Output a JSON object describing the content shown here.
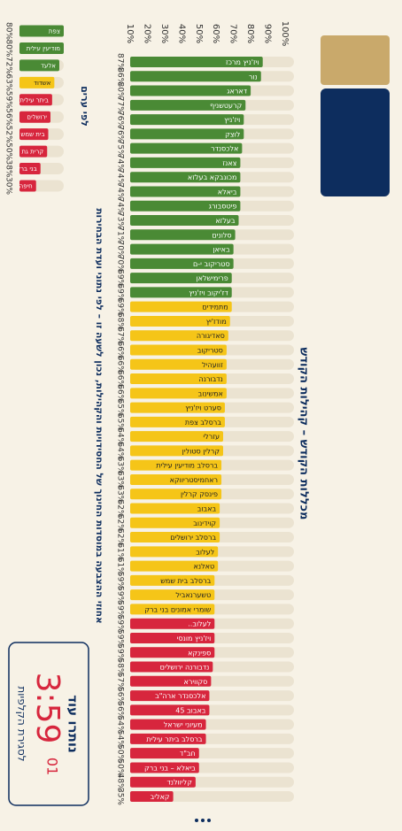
{
  "header": {
    "title": "מכללות הקודש – קהילות הקודש",
    "caption": "אחוזי ההצבעה במוסדות החינוך של החסידויות והקהילות, נכון לשעה זו – לפי נתוני ועדת הבחירות"
  },
  "countdown": {
    "label": "נותרו עוד",
    "time": "3:59",
    "seconds": "01",
    "caption": "לסגירת הקלפיות"
  },
  "chart_data": [
    {
      "type": "bar",
      "categories": [
        "ויז'ניץ מרכז",
        "נור",
        "דאראג",
        "קרעטשניף",
        "ויז'ניץ",
        "לוצק",
        "אלכסנדר",
        "צאנז",
        "מכונבקא בעלזא",
        "ביאלא",
        "פיטסבורג",
        "בעלזא",
        "סלונים",
        "באיאן",
        "סטריקוב י-ם",
        "פרימישלאן",
        "דז'יקוב ויז'ניץ",
        "מתמידים",
        "מודז'יץ",
        "סאדיגורה",
        "סטריקוב",
        "זוועהיל",
        "נדבורנה",
        "אמשינוב",
        "סערט ויז'ניץ",
        "ברסלב צפת",
        "עזרלי",
        "קרלין סטולין",
        "ברסלב מודיעין עילית",
        "ראחמיסטריווקא",
        "פינסק קרלין",
        "באבוב",
        "קוידינוב",
        "ברסלב ירושלים",
        "לעלוב",
        "טאלנא",
        "ברסלב בית שמש",
        "טשערנאביל",
        "שומרי אמונים בני ברק",
        "לעלוב..",
        "ויז'ניץ מונסי",
        "ספינקא",
        "נדבורנה ירושלים",
        "סקווירא",
        "אלכסנדר ארה\"ב",
        "באבוב 45",
        "מעיוני ישראל",
        "ברסלב ביתר עילית",
        "חב\"ד",
        "ביאלא – בני ברק",
        "קליוולנד",
        "קאליב"
      ],
      "values": [
        87,
        86,
        80,
        77,
        76,
        76,
        75,
        74,
        74,
        74,
        74,
        73,
        71,
        70,
        70,
        69,
        69,
        69,
        68,
        67,
        66,
        66,
        66,
        66,
        65,
        65,
        64,
        64,
        63,
        63,
        63,
        62,
        62,
        62,
        61,
        61,
        59,
        59,
        59,
        59,
        59,
        59,
        58,
        57,
        56,
        56,
        54,
        54,
        50,
        50,
        48,
        35
      ],
      "value_labels": [
        "87%",
        "86%",
        "80%",
        "77%",
        "76%",
        "76%",
        "75%",
        "74%",
        "74%",
        "74%",
        "74%",
        "73%",
        "71%",
        "70%",
        "70%",
        "69%",
        "69%",
        "69%",
        "68%",
        "67%",
        "66%",
        "66%",
        "66%",
        "66%",
        "65%",
        "65%",
        "64%",
        "64%",
        "63%",
        "63%",
        "63%",
        "62%",
        "62%",
        "62%",
        "61%",
        "61%",
        "59%",
        "59%",
        "59%",
        "59%",
        "59%",
        "59%",
        "58%",
        "57%",
        "56%",
        "56%",
        "54%",
        "54%",
        "50%",
        "50%",
        "48%",
        "35%"
      ],
      "colors": [
        "#4a8a35",
        "#4a8a35",
        "#4a8a35",
        "#4a8a35",
        "#4a8a35",
        "#4a8a35",
        "#4a8a35",
        "#4a8a35",
        "#4a8a35",
        "#4a8a35",
        "#4a8a35",
        "#4a8a35",
        "#4a8a35",
        "#4a8a35",
        "#4a8a35",
        "#4a8a35",
        "#4a8a35",
        "#f5c518",
        "#f5c518",
        "#f5c518",
        "#f5c518",
        "#f5c518",
        "#f5c518",
        "#f5c518",
        "#f5c518",
        "#f5c518",
        "#f5c518",
        "#f5c518",
        "#f5c518",
        "#f5c518",
        "#f5c518",
        "#f5c518",
        "#f5c518",
        "#f5c518",
        "#f5c518",
        "#f5c518",
        "#f5c518",
        "#f5c518",
        "#f5c518",
        "#d7263d",
        "#d7263d",
        "#d7263d",
        "#d7263d",
        "#d7263d",
        "#d7263d",
        "#d7263d",
        "#d7263d",
        "#d7263d",
        "#d7263d",
        "#d7263d",
        "#d7263d",
        "#d7263d"
      ],
      "xlim": [
        10,
        100
      ],
      "xticks": [
        {
          "value": 10,
          "label": "10%"
        },
        {
          "value": 20,
          "label": "20%"
        },
        {
          "value": 30,
          "label": "30%"
        },
        {
          "value": 40,
          "label": "40%"
        },
        {
          "value": 50,
          "label": "50%"
        },
        {
          "value": 60,
          "label": "60%"
        },
        {
          "value": 70,
          "label": "70%"
        },
        {
          "value": 80,
          "label": "80%"
        },
        {
          "value": 90,
          "label": "90%"
        },
        {
          "value": 100,
          "label": "100%"
        }
      ]
    },
    {
      "type": "bar",
      "title": "לפי ערים",
      "categories": [
        "צפת",
        "מודיעין עילית",
        "אלעד",
        "אשדוד",
        "ביתר עילית",
        "ירושלים",
        "בית שמש",
        "קרית גת",
        "בני ברק",
        "חיפה"
      ],
      "values": [
        80,
        80,
        72,
        63,
        59,
        56,
        52,
        50,
        38,
        30
      ],
      "value_labels": [
        "80%",
        "80%",
        "72%",
        "63%",
        "59%",
        "56%",
        "52%",
        "50%",
        "38%",
        "30%"
      ],
      "colors": [
        "#4a8a35",
        "#4a8a35",
        "#4a8a35",
        "#f5c518",
        "#d7263d",
        "#d7263d",
        "#d7263d",
        "#d7263d",
        "#d7263d",
        "#d7263d"
      ],
      "xlim": [
        0,
        100
      ]
    }
  ]
}
